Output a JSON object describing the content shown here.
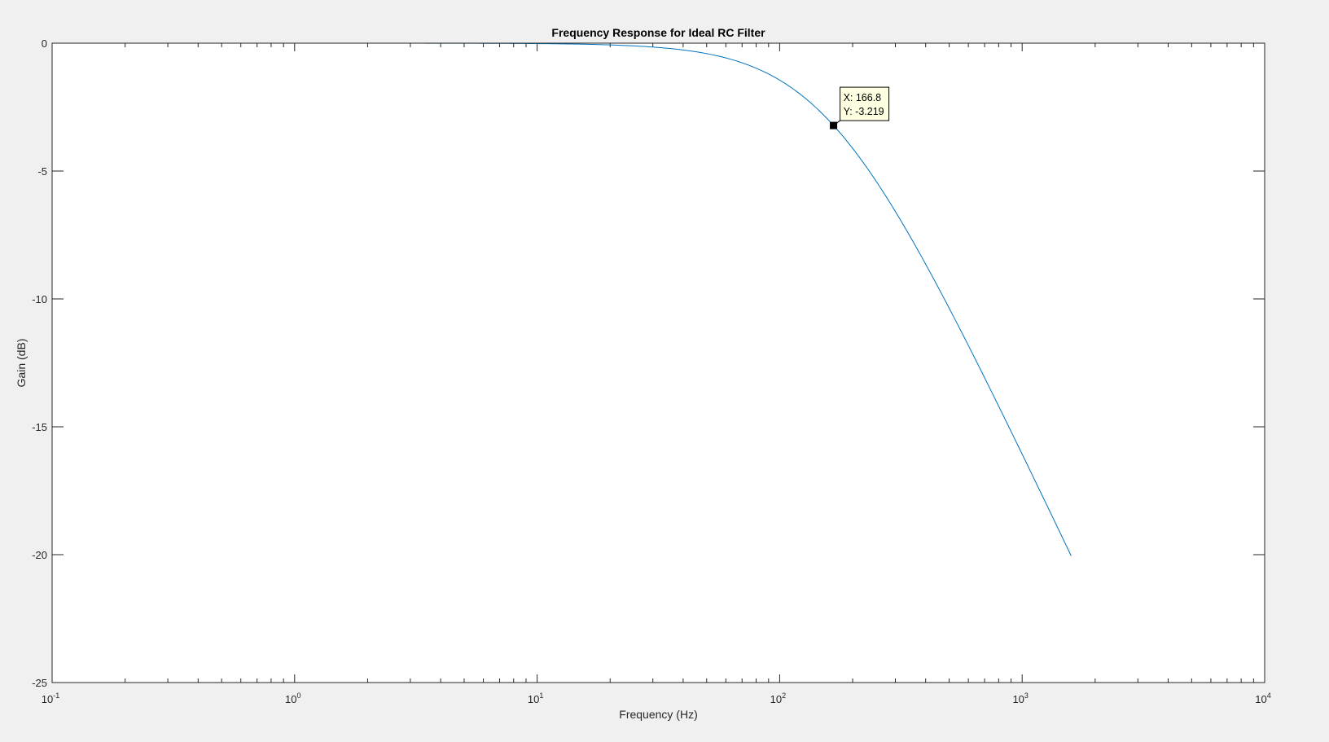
{
  "chart_data": {
    "type": "line",
    "title": "Frequency Response for Ideal RC Filter",
    "xlabel": "Frequency (Hz)",
    "ylabel": "Gain (dB)",
    "xscale": "log",
    "xlim": [
      0.1,
      10000
    ],
    "ylim": [
      -25,
      0
    ],
    "grid": false,
    "x_ticks": [
      {
        "base": "10",
        "exp": "-1",
        "value": 0.1
      },
      {
        "base": "10",
        "exp": "0",
        "value": 1
      },
      {
        "base": "10",
        "exp": "1",
        "value": 10
      },
      {
        "base": "10",
        "exp": "2",
        "value": 100
      },
      {
        "base": "10",
        "exp": "3",
        "value": 1000
      },
      {
        "base": "10",
        "exp": "4",
        "value": 10000
      }
    ],
    "y_ticks": [
      {
        "label": "0",
        "value": 0
      },
      {
        "label": "-5",
        "value": -5
      },
      {
        "label": "-10",
        "value": -10
      },
      {
        "label": "-15",
        "value": -15
      },
      {
        "label": "-20",
        "value": -20
      },
      {
        "label": "-25",
        "value": -25
      }
    ],
    "series": [
      {
        "color": "#0072bd",
        "cutoff_hz": 159.2,
        "x_range": [
          0.159,
          1592
        ]
      }
    ],
    "datatip": {
      "x": 166.8,
      "y": -3.219,
      "x_text": "X: 166.8",
      "y_text": "Y: -3.219"
    }
  }
}
